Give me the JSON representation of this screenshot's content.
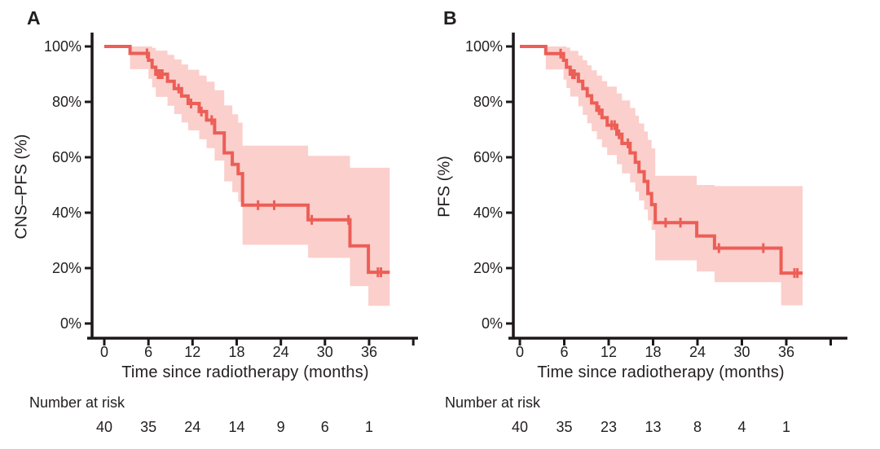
{
  "figure": {
    "background": "#ffffff",
    "colors": {
      "curve": "#ec5e56",
      "confidence_band": "#fbcfcc",
      "axis": "#1c1719",
      "text": "#221e1f"
    }
  },
  "chart_data": [
    {
      "type": "line",
      "subtype": "kaplan-meier-step",
      "panel_label": "A",
      "ylabel": "CNS–PFS (%)",
      "xlabel": "Time since radiotherapy (months)",
      "x_ticks": [
        "0",
        "6",
        "12",
        "18",
        "24",
        "30",
        "36"
      ],
      "x_tick_months": [
        0,
        6,
        12,
        18,
        24,
        30,
        36
      ],
      "y_ticks": [
        "100%",
        "80%",
        "60%",
        "40%",
        "20%",
        "0%"
      ],
      "y_tick_values": [
        100,
        80,
        60,
        40,
        20,
        0
      ],
      "xlim": [
        0,
        42
      ],
      "ylim": [
        0,
        100
      ],
      "grid": false,
      "legend": "none",
      "km_steps": [
        [
          0,
          100
        ],
        [
          3.5,
          97.5
        ],
        [
          6,
          95
        ],
        [
          6.5,
          92.5
        ],
        [
          7,
          90
        ],
        [
          8.6,
          87.4
        ],
        [
          9.5,
          84.8
        ],
        [
          10.5,
          82.1
        ],
        [
          11.4,
          79.4
        ],
        [
          12.9,
          76.5
        ],
        [
          13.9,
          73.4
        ],
        [
          15,
          68.8
        ],
        [
          16.3,
          61.6
        ],
        [
          17.4,
          57.4
        ],
        [
          18.2,
          54.1
        ],
        [
          18.8,
          42.7
        ],
        [
          27.7,
          37.4
        ],
        [
          33.4,
          28
        ],
        [
          35.9,
          18.5
        ]
      ],
      "curve_end_month": 38.8,
      "censor_marks": [
        [
          5.8,
          97.5
        ],
        [
          7.3,
          90
        ],
        [
          7.6,
          90
        ],
        [
          7.9,
          90
        ],
        [
          10.1,
          84.8
        ],
        [
          11.8,
          79.4
        ],
        [
          13.2,
          76.5
        ],
        [
          14.6,
          73.4
        ],
        [
          20.9,
          42.7
        ],
        [
          23.1,
          42.7
        ],
        [
          28.2,
          37.4
        ],
        [
          33.2,
          37.4
        ],
        [
          37.2,
          18.5
        ],
        [
          37.6,
          18.5
        ]
      ],
      "confidence_band": [
        [
          3.5,
          91.8,
          100
        ],
        [
          6,
          88.3,
          100
        ],
        [
          6.5,
          85.2,
          99.5
        ],
        [
          7,
          81.8,
          98.5
        ],
        [
          8.6,
          78.6,
          97
        ],
        [
          9.5,
          75.6,
          95.3
        ],
        [
          10.5,
          72.6,
          93.5
        ],
        [
          11.4,
          69.7,
          91.6
        ],
        [
          12.9,
          66.5,
          89.5
        ],
        [
          13.9,
          63.3,
          87.3
        ],
        [
          15,
          58.8,
          84.2
        ],
        [
          16.3,
          51.3,
          78.7
        ],
        [
          17.4,
          47.4,
          75.5
        ],
        [
          18.2,
          43.9,
          72.5
        ],
        [
          18.8,
          28.4,
          64.2
        ],
        [
          27.7,
          23.7,
          60.5
        ],
        [
          33.4,
          13.5,
          56.2
        ],
        [
          35.9,
          6.4,
          56.2
        ]
      ],
      "number_at_risk": {
        "label": "Number at risk",
        "times": [
          0,
          6,
          12,
          18,
          24,
          30,
          36
        ],
        "values": [
          "40",
          "35",
          "24",
          "14",
          "9",
          "6",
          "1"
        ]
      }
    },
    {
      "type": "line",
      "subtype": "kaplan-meier-step",
      "panel_label": "B",
      "ylabel": "PFS (%)",
      "xlabel": "Time since radiotherapy (months)",
      "x_ticks": [
        "0",
        "6",
        "12",
        "18",
        "24",
        "30",
        "36"
      ],
      "x_tick_months": [
        0,
        6,
        12,
        18,
        24,
        30,
        36
      ],
      "y_ticks": [
        "100%",
        "80%",
        "60%",
        "40%",
        "20%",
        "0%"
      ],
      "y_tick_values": [
        100,
        80,
        60,
        40,
        20,
        0
      ],
      "xlim": [
        0,
        42
      ],
      "ylim": [
        0,
        100
      ],
      "grid": false,
      "legend": "none",
      "km_steps": [
        [
          0,
          100
        ],
        [
          3.5,
          97.4
        ],
        [
          5.9,
          95
        ],
        [
          6.3,
          92.5
        ],
        [
          6.8,
          90
        ],
        [
          7.9,
          87.4
        ],
        [
          8.5,
          84.8
        ],
        [
          9.1,
          82.2
        ],
        [
          9.7,
          79.6
        ],
        [
          10.4,
          77
        ],
        [
          11.1,
          74.3
        ],
        [
          11.8,
          71.6
        ],
        [
          13.1,
          68.3
        ],
        [
          13.8,
          65
        ],
        [
          14.9,
          61.6
        ],
        [
          15.6,
          58.2
        ],
        [
          16.1,
          54.8
        ],
        [
          16.8,
          51.3
        ],
        [
          17.3,
          46.9
        ],
        [
          17.8,
          42.9
        ],
        [
          18.3,
          36.4
        ],
        [
          23.9,
          31.6
        ],
        [
          26.3,
          27.2
        ],
        [
          35.3,
          18.2
        ]
      ],
      "curve_end_month": 38.2,
      "censor_marks": [
        [
          5.5,
          97.4
        ],
        [
          7.1,
          90
        ],
        [
          7.4,
          90
        ],
        [
          10.7,
          77
        ],
        [
          12.4,
          71.6
        ],
        [
          12.8,
          71.6
        ],
        [
          13.4,
          68.3
        ],
        [
          14.6,
          65
        ],
        [
          19.7,
          36.4
        ],
        [
          21.7,
          36.4
        ],
        [
          26.9,
          27.2
        ],
        [
          32.9,
          27.2
        ],
        [
          37.1,
          18.2
        ],
        [
          37.5,
          18.2
        ]
      ],
      "confidence_band": [
        [
          3.5,
          91.7,
          100
        ],
        [
          5.9,
          88,
          100
        ],
        [
          6.3,
          85,
          99.6
        ],
        [
          6.8,
          81.9,
          98.4
        ],
        [
          7.9,
          78.4,
          96.7
        ],
        [
          8.5,
          75.3,
          95
        ],
        [
          9.1,
          72.3,
          93.2
        ],
        [
          9.7,
          69.4,
          91.4
        ],
        [
          10.4,
          66.5,
          89.5
        ],
        [
          11.1,
          63.6,
          87.5
        ],
        [
          11.8,
          60.8,
          85.5
        ],
        [
          13.1,
          57.5,
          83
        ],
        [
          13.8,
          54.2,
          80.5
        ],
        [
          14.9,
          50.9,
          77.8
        ],
        [
          15.6,
          47.6,
          75
        ],
        [
          16.1,
          44.4,
          72.2
        ],
        [
          16.8,
          41.1,
          69.3
        ],
        [
          17.3,
          37.2,
          66.3
        ],
        [
          17.8,
          33.8,
          63.2
        ],
        [
          18.3,
          22.8,
          53.3
        ],
        [
          23.9,
          18.8,
          50
        ],
        [
          26.3,
          14.9,
          49.6
        ],
        [
          35.3,
          6.6,
          49.6
        ]
      ],
      "number_at_risk": {
        "label": "Number at risk",
        "times": [
          0,
          6,
          12,
          18,
          24,
          30,
          36
        ],
        "values": [
          "40",
          "35",
          "23",
          "13",
          "8",
          "4",
          "1"
        ]
      }
    }
  ]
}
